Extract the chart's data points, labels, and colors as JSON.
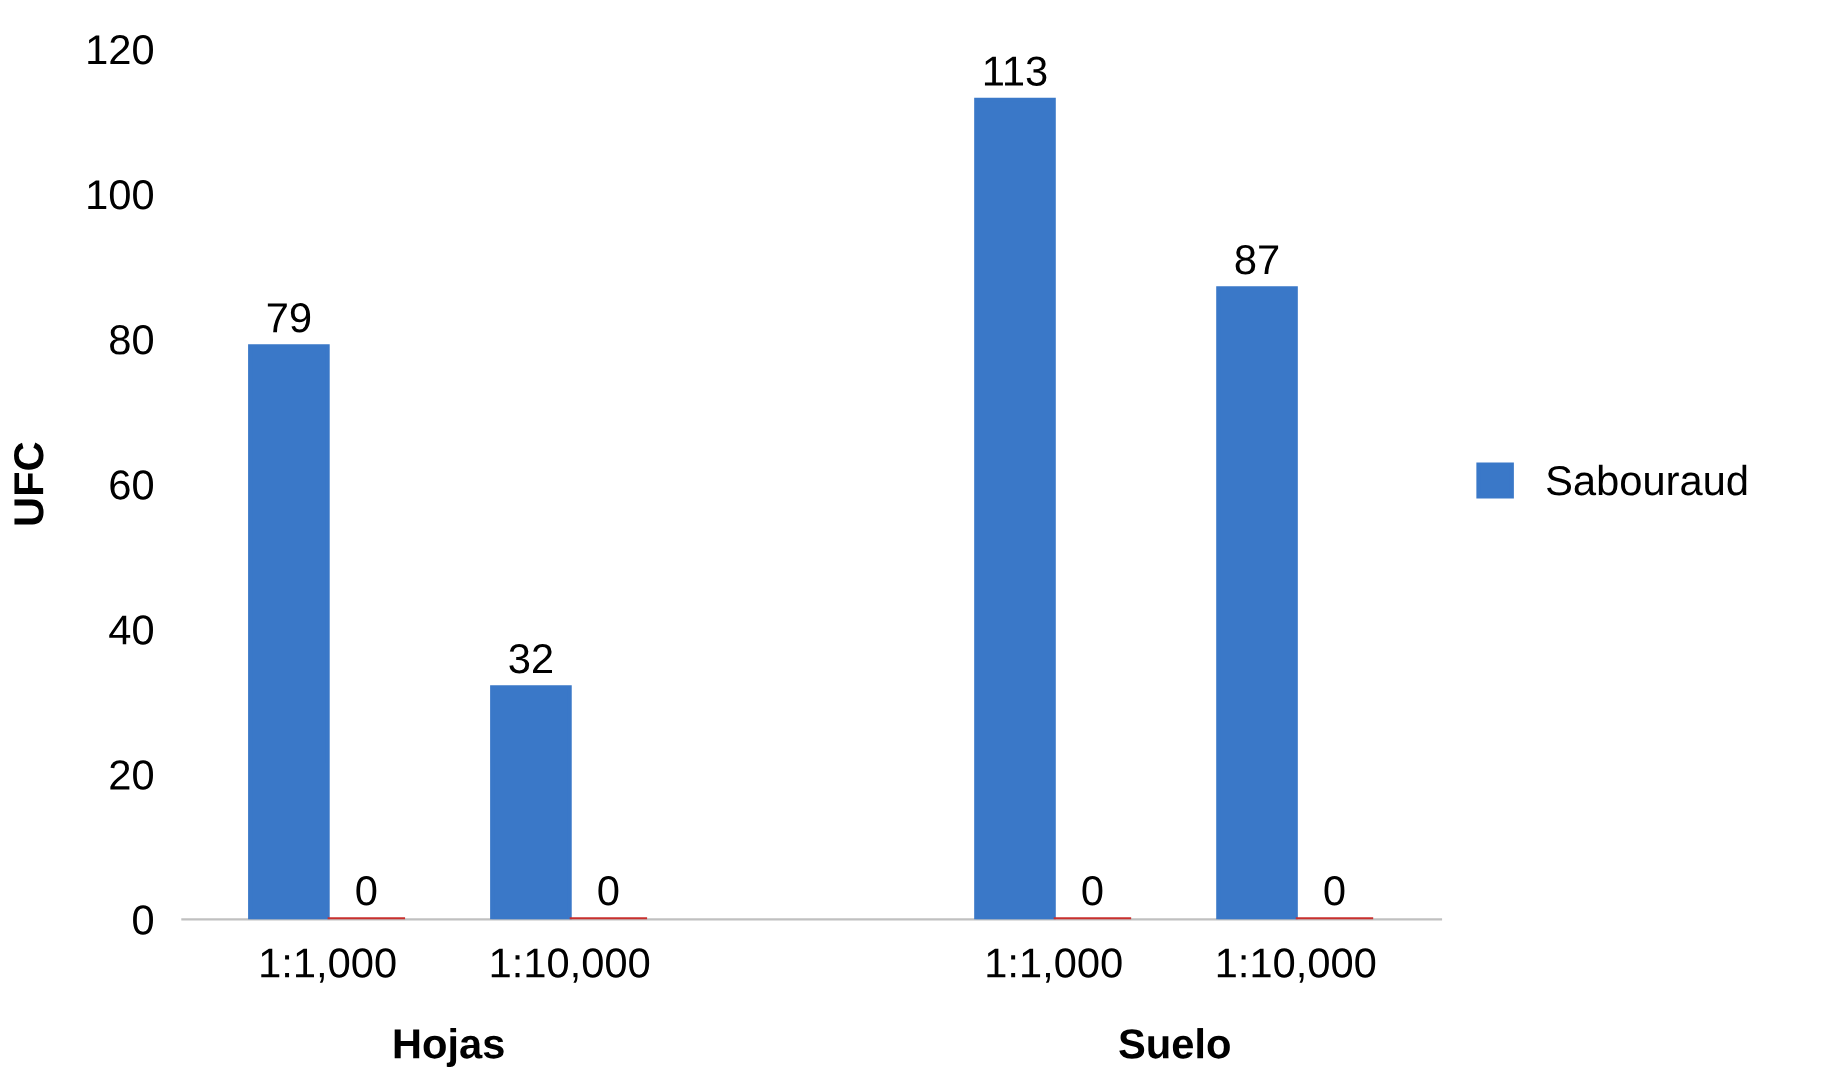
{
  "chart_data": {
    "type": "bar",
    "ylabel": "UFC",
    "categories": [
      "1:1,000",
      "1:10,000",
      null,
      "1:1,000",
      "1:10,000"
    ],
    "series": [
      {
        "name": "Sabouraud",
        "color": "#3a78c8",
        "values": [
          79,
          32,
          null,
          113,
          87
        ]
      },
      {
        "color": "#c8302e",
        "values": [
          0,
          0,
          null,
          0,
          0
        ]
      }
    ],
    "annotations": [
      "Hojas",
      "Suelo"
    ],
    "ylim": [
      0,
      120
    ],
    "yticks": [
      0,
      20,
      40,
      60,
      80,
      100,
      120
    ],
    "data_labels": true,
    "grid": false,
    "legend": "right"
  }
}
